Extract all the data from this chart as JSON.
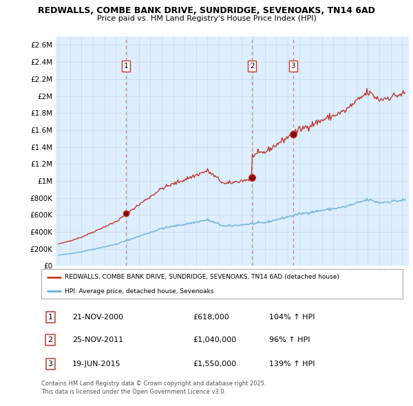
{
  "title1": "REDWALLS, COMBE BANK DRIVE, SUNDRIDGE, SEVENOAKS, TN14 6AD",
  "title2": "Price paid vs. HM Land Registry's House Price Index (HPI)",
  "yticks_labels": [
    "£0",
    "£200K",
    "£400K",
    "£600K",
    "£800K",
    "£1M",
    "£1.2M",
    "£1.4M",
    "£1.6M",
    "£1.8M",
    "£2M",
    "£2.2M",
    "£2.4M",
    "£2.6M"
  ],
  "yticks_values": [
    0,
    200000,
    400000,
    600000,
    800000,
    1000000,
    1200000,
    1400000,
    1600000,
    1800000,
    2000000,
    2200000,
    2400000,
    2600000
  ],
  "ylim": [
    0,
    2700000
  ],
  "hpi_color": "#6baed6",
  "price_color": "#c0392b",
  "bg_plot_color": "#ddeeff",
  "legend_hpi": "HPI: Average price, detached house, Sevenoaks",
  "legend_price": "REDWALLS, COMBE BANK DRIVE, SUNDRIDGE, SEVENOAKS, TN14 6AD (detached house)",
  "sale_dates": [
    "2000-11-21",
    "2011-11-25",
    "2015-06-19"
  ],
  "sale_prices": [
    618000,
    1040000,
    1550000
  ],
  "sale_labels": [
    "1",
    "2",
    "3"
  ],
  "sale_hpi_pct": [
    "104% ↑ HPI",
    "96% ↑ HPI",
    "139% ↑ HPI"
  ],
  "table_dates": [
    "21-NOV-2000",
    "25-NOV-2011",
    "19-JUN-2015"
  ],
  "table_prices": [
    "£618,000",
    "£1,040,000",
    "£1,550,000"
  ],
  "footnote": "Contains HM Land Registry data © Crown copyright and database right 2025.\nThis data is licensed under the Open Government Licence v3.0.",
  "background_color": "#ffffff",
  "grid_color": "#c8d8e8"
}
